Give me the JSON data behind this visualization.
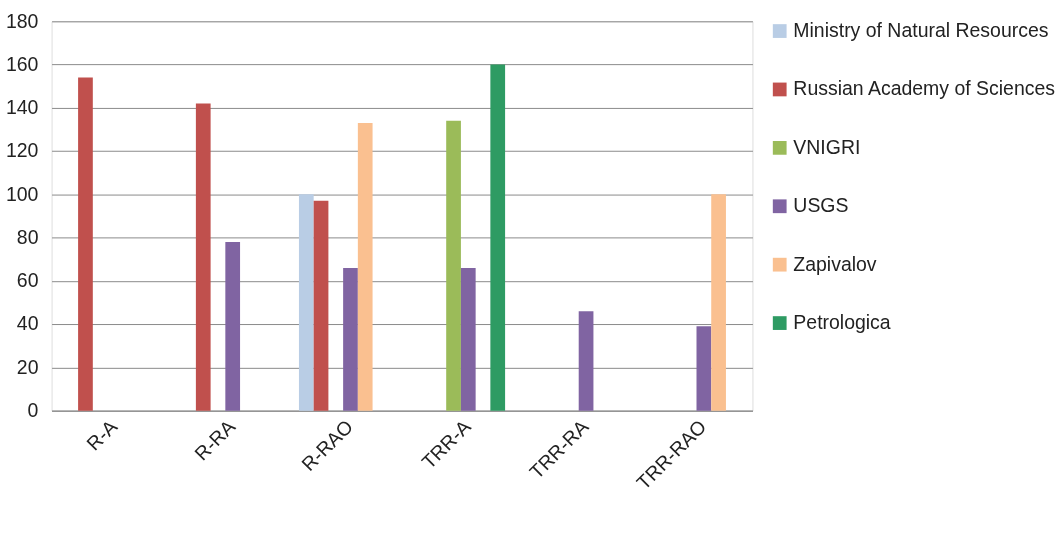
{
  "chart_data": {
    "type": "bar",
    "categories": [
      "R-A",
      "R-RA",
      "R-RAO",
      "TRR-A",
      "TRR-RA",
      "TRR-RAO"
    ],
    "series": [
      {
        "name": "Ministry of Natural Resources",
        "color": "#b9cde5",
        "values": [
          null,
          null,
          100,
          null,
          null,
          null
        ]
      },
      {
        "name": "Russian Academy of Sciences",
        "color": "#c0504d",
        "values": [
          154,
          142,
          97,
          null,
          null,
          null
        ]
      },
      {
        "name": "VNIGRI",
        "color": "#9bbb59",
        "values": [
          null,
          null,
          null,
          134,
          null,
          null
        ]
      },
      {
        "name": "USGS",
        "color": "#8064a2",
        "values": [
          null,
          78,
          66,
          66,
          46,
          39
        ]
      },
      {
        "name": "Zapivalov",
        "color": "#fac090",
        "values": [
          null,
          null,
          133,
          null,
          null,
          100
        ]
      },
      {
        "name": "Petrologica",
        "color": "#2e9b63",
        "values": [
          null,
          null,
          null,
          160,
          null,
          null
        ]
      }
    ],
    "ylim": [
      0,
      180
    ],
    "yticks": [
      0,
      20,
      40,
      60,
      80,
      100,
      120,
      140,
      160,
      180
    ],
    "grid": "y",
    "legend": "right"
  }
}
